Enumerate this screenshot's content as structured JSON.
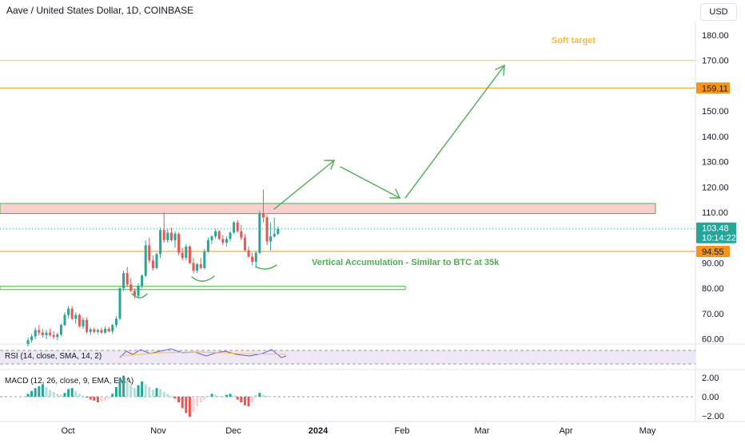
{
  "header": {
    "title": "Aave / United States Dollar, 1D, COINBASE",
    "currency": "USD"
  },
  "price_axis": {
    "ticks": [
      "180.00",
      "170.00",
      "150.00",
      "140.00",
      "130.00",
      "120.00",
      "110.00",
      "90.00",
      "80.00",
      "70.00",
      "60.00"
    ],
    "tick_values": [
      180,
      170,
      150,
      140,
      130,
      120,
      110,
      90,
      80,
      70,
      60
    ],
    "badges": [
      {
        "text": "159.11",
        "value": 159.11,
        "color": "#f7931a"
      },
      {
        "text": "94.55",
        "value": 94.55,
        "color": "#f7931a"
      }
    ],
    "current_price": {
      "price": "103.48",
      "countdown": "10:14:22",
      "value": 103.48,
      "color": "#26a69a"
    }
  },
  "time_axis": {
    "labels": [
      "Oct",
      "Nov",
      "Dec",
      "2024",
      "Feb",
      "Mar",
      "Apr",
      "May"
    ]
  },
  "annotations": {
    "soft_target": "Soft target",
    "accumulation": "Vertical Accumulation - Similar to BTC at 35k"
  },
  "levels": [
    {
      "value": 170,
      "color": "#f5d033"
    },
    {
      "value": 159.11,
      "color": "#f7931a"
    },
    {
      "value": 94.55,
      "color": "#f7931a"
    }
  ],
  "zones": [
    {
      "from": 109.5,
      "to": 113.5,
      "fill": "#f8d0d0",
      "stroke": "#4caf50"
    },
    {
      "from": 79.5,
      "to": 80.8,
      "fill": "#ffffff",
      "stroke": "#4caf50"
    }
  ],
  "colors": {
    "up": "#26a69a",
    "down": "#ef5350",
    "drawing": "#4caf50",
    "soft_target": "#f5b942",
    "rsi_line": "#7e57c2",
    "rsi_band": "#ede7f6",
    "rsi_sma": "#f5c542",
    "macd_line": "#2962ff",
    "signal_line": "#ff9800"
  },
  "rsi": {
    "label": "RSI (14, close, SMA, 14, 2)"
  },
  "macd": {
    "label": "MACD (12, 26, close, 9, EMA, EMA)",
    "ticks": [
      "2.00",
      "0.00",
      "−2.00"
    ],
    "tick_values": [
      2,
      0,
      -2
    ]
  },
  "chart_data": {
    "type": "candlestick",
    "symbol": "Aave / United States Dollar",
    "interval": "1D",
    "ylim": [
      57,
      188
    ],
    "candles": [
      {
        "o": 58.0,
        "h": 60.5,
        "l": 57.0,
        "c": 59.5
      },
      {
        "o": 59.5,
        "h": 62.0,
        "l": 58.5,
        "c": 61.0
      },
      {
        "o": 61.0,
        "h": 64.5,
        "l": 60.0,
        "c": 63.5
      },
      {
        "o": 63.5,
        "h": 65.5,
        "l": 61.5,
        "c": 62.5
      },
      {
        "o": 62.5,
        "h": 64.0,
        "l": 60.5,
        "c": 61.5
      },
      {
        "o": 61.5,
        "h": 63.5,
        "l": 60.0,
        "c": 62.5
      },
      {
        "o": 62.5,
        "h": 64.0,
        "l": 61.0,
        "c": 61.5
      },
      {
        "o": 61.5,
        "h": 63.0,
        "l": 60.0,
        "c": 60.8
      },
      {
        "o": 60.8,
        "h": 62.5,
        "l": 59.5,
        "c": 61.8
      },
      {
        "o": 61.8,
        "h": 66.0,
        "l": 61.0,
        "c": 65.5
      },
      {
        "o": 65.5,
        "h": 70.5,
        "l": 65.0,
        "c": 69.5
      },
      {
        "o": 69.5,
        "h": 73.0,
        "l": 68.0,
        "c": 72.0
      },
      {
        "o": 72.0,
        "h": 73.0,
        "l": 67.5,
        "c": 68.0
      },
      {
        "o": 68.0,
        "h": 70.5,
        "l": 66.0,
        "c": 69.5
      },
      {
        "o": 69.5,
        "h": 70.0,
        "l": 64.5,
        "c": 65.0
      },
      {
        "o": 65.0,
        "h": 68.5,
        "l": 64.0,
        "c": 67.5
      },
      {
        "o": 67.5,
        "h": 68.5,
        "l": 62.0,
        "c": 62.8
      },
      {
        "o": 62.8,
        "h": 64.5,
        "l": 61.5,
        "c": 63.8
      },
      {
        "o": 63.8,
        "h": 64.5,
        "l": 62.0,
        "c": 62.8
      },
      {
        "o": 62.8,
        "h": 64.0,
        "l": 62.0,
        "c": 63.5
      },
      {
        "o": 63.5,
        "h": 64.5,
        "l": 62.0,
        "c": 62.5
      },
      {
        "o": 62.5,
        "h": 65.0,
        "l": 62.0,
        "c": 64.0
      },
      {
        "o": 64.0,
        "h": 64.8,
        "l": 62.5,
        "c": 63.0
      },
      {
        "o": 63.0,
        "h": 66.0,
        "l": 62.0,
        "c": 65.5
      },
      {
        "o": 65.5,
        "h": 69.0,
        "l": 64.5,
        "c": 68.0
      },
      {
        "o": 68.0,
        "h": 80.5,
        "l": 67.5,
        "c": 80.0
      },
      {
        "o": 80.0,
        "h": 87.0,
        "l": 79.0,
        "c": 86.0
      },
      {
        "o": 86.0,
        "h": 88.5,
        "l": 80.5,
        "c": 81.5
      },
      {
        "o": 81.5,
        "h": 84.0,
        "l": 78.5,
        "c": 79.0
      },
      {
        "o": 79.0,
        "h": 80.0,
        "l": 76.0,
        "c": 77.0
      },
      {
        "o": 77.0,
        "h": 82.0,
        "l": 76.0,
        "c": 81.0
      },
      {
        "o": 81.0,
        "h": 85.5,
        "l": 80.0,
        "c": 85.0
      },
      {
        "o": 85.0,
        "h": 99.0,
        "l": 84.5,
        "c": 97.0
      },
      {
        "o": 97.0,
        "h": 100.0,
        "l": 90.0,
        "c": 91.0
      },
      {
        "o": 91.0,
        "h": 93.0,
        "l": 87.0,
        "c": 88.0
      },
      {
        "o": 88.0,
        "h": 94.0,
        "l": 87.5,
        "c": 93.5
      },
      {
        "o": 93.5,
        "h": 104.0,
        "l": 92.0,
        "c": 103.0
      },
      {
        "o": 103.0,
        "h": 110.0,
        "l": 98.0,
        "c": 99.0
      },
      {
        "o": 99.0,
        "h": 103.5,
        "l": 98.0,
        "c": 102.0
      },
      {
        "o": 102.0,
        "h": 104.0,
        "l": 98.5,
        "c": 99.0
      },
      {
        "o": 99.0,
        "h": 102.5,
        "l": 96.0,
        "c": 101.5
      },
      {
        "o": 101.5,
        "h": 102.0,
        "l": 93.0,
        "c": 94.0
      },
      {
        "o": 94.0,
        "h": 96.0,
        "l": 91.0,
        "c": 92.0
      },
      {
        "o": 92.0,
        "h": 97.5,
        "l": 91.0,
        "c": 96.5
      },
      {
        "o": 96.5,
        "h": 97.0,
        "l": 89.5,
        "c": 90.0
      },
      {
        "o": 90.0,
        "h": 92.0,
        "l": 86.0,
        "c": 87.0
      },
      {
        "o": 87.0,
        "h": 90.0,
        "l": 86.0,
        "c": 89.5
      },
      {
        "o": 89.5,
        "h": 92.0,
        "l": 87.5,
        "c": 88.0
      },
      {
        "o": 88.0,
        "h": 95.5,
        "l": 87.5,
        "c": 94.5
      },
      {
        "o": 94.5,
        "h": 100.0,
        "l": 94.0,
        "c": 99.0
      },
      {
        "o": 99.0,
        "h": 101.0,
        "l": 97.5,
        "c": 100.5
      },
      {
        "o": 100.5,
        "h": 103.5,
        "l": 99.5,
        "c": 102.5
      },
      {
        "o": 102.5,
        "h": 103.0,
        "l": 99.0,
        "c": 99.5
      },
      {
        "o": 99.5,
        "h": 101.0,
        "l": 97.0,
        "c": 98.0
      },
      {
        "o": 98.0,
        "h": 100.5,
        "l": 96.5,
        "c": 99.5
      },
      {
        "o": 99.5,
        "h": 102.5,
        "l": 98.5,
        "c": 102.0
      },
      {
        "o": 102.0,
        "h": 106.5,
        "l": 101.5,
        "c": 106.0
      },
      {
        "o": 106.0,
        "h": 107.0,
        "l": 102.0,
        "c": 102.5
      },
      {
        "o": 102.5,
        "h": 105.0,
        "l": 99.0,
        "c": 100.0
      },
      {
        "o": 100.0,
        "h": 101.5,
        "l": 94.5,
        "c": 95.0
      },
      {
        "o": 95.0,
        "h": 96.5,
        "l": 92.0,
        "c": 92.5
      },
      {
        "o": 92.5,
        "h": 94.0,
        "l": 89.0,
        "c": 90.5
      },
      {
        "o": 90.5,
        "h": 94.5,
        "l": 88.0,
        "c": 94.0
      },
      {
        "o": 94.0,
        "h": 110.5,
        "l": 93.5,
        "c": 109.5
      },
      {
        "o": 109.5,
        "h": 119.0,
        "l": 106.0,
        "c": 108.0
      },
      {
        "o": 108.0,
        "h": 109.0,
        "l": 97.0,
        "c": 98.5
      },
      {
        "o": 98.5,
        "h": 106.0,
        "l": 95.0,
        "c": 100.5
      },
      {
        "o": 100.5,
        "h": 108.0,
        "l": 100.0,
        "c": 101.5
      },
      {
        "o": 101.5,
        "h": 104.5,
        "l": 101.0,
        "c": 103.48
      }
    ],
    "xlabels": [
      "Oct",
      "Nov",
      "Dec",
      "2024",
      "Feb",
      "Mar",
      "Apr",
      "May"
    ],
    "yticks": [
      60,
      70,
      80,
      90,
      110,
      120,
      130,
      140,
      150,
      170,
      180
    ]
  }
}
